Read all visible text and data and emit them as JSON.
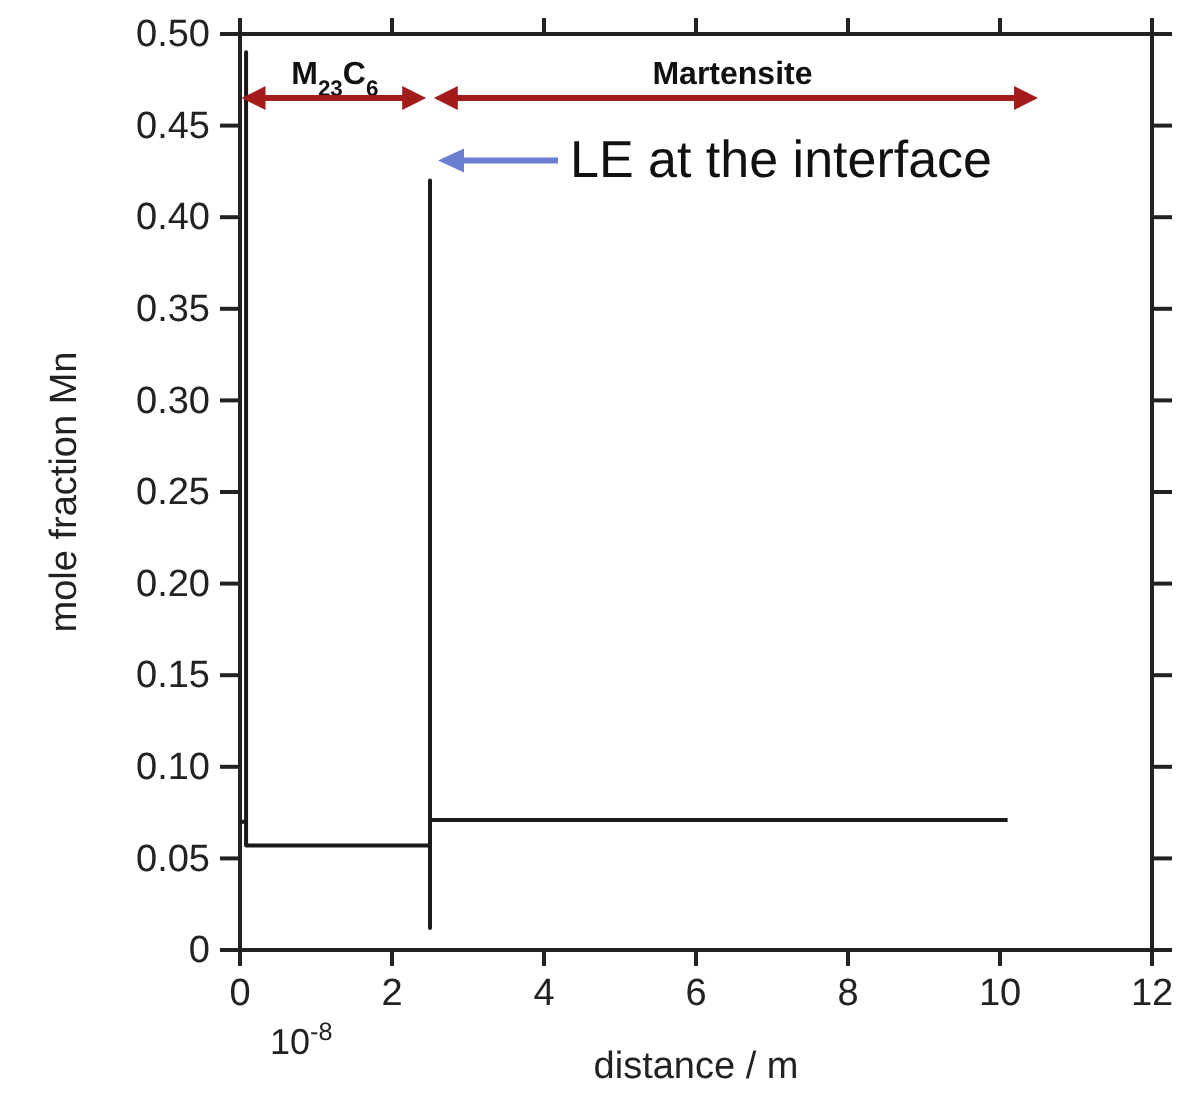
{
  "chart_data": {
    "type": "line",
    "xlabel": "distance / m",
    "ylabel": "mole fraction Mn",
    "xlim": [
      0,
      12
    ],
    "xticks": [
      0,
      2,
      4,
      6,
      8,
      10,
      12
    ],
    "ylim": [
      0,
      0.5
    ],
    "yticks": [
      0,
      {
        "value": 0.05,
        "label": "0.05"
      },
      {
        "value": 0.1,
        "label": "0.10"
      },
      {
        "value": 0.15,
        "label": "0.15"
      },
      {
        "value": 0.2,
        "label": "0.20"
      },
      {
        "value": 0.25,
        "label": "0.25"
      },
      {
        "value": 0.3,
        "label": "0.30"
      },
      {
        "value": 0.35,
        "label": "0.35"
      },
      {
        "value": 0.4,
        "label": "0.40"
      },
      {
        "value": 0.45,
        "label": "0.45"
      },
      {
        "value": 0.5,
        "label": "0.50"
      }
    ],
    "grid": false,
    "marker": "none",
    "line_style": "solid",
    "series": [
      {
        "color": "#1a1a1a",
        "x": [
          0,
          0.08,
          0.08,
          0.08,
          2.5,
          2.5,
          2.5,
          2.5,
          10.1
        ],
        "values": [
          0.07,
          0.07,
          0.49,
          0.057,
          0.057,
          0.012,
          0.42,
          0.071,
          0.071
        ]
      }
    ],
    "annotations": [
      "M$_{23}$C$_{6}$",
      "Martensite",
      {
        "text": "LE at the interface",
        "x": 2.5,
        "y": 0.42
      },
      "10$^{-8}$"
    ]
  }
}
